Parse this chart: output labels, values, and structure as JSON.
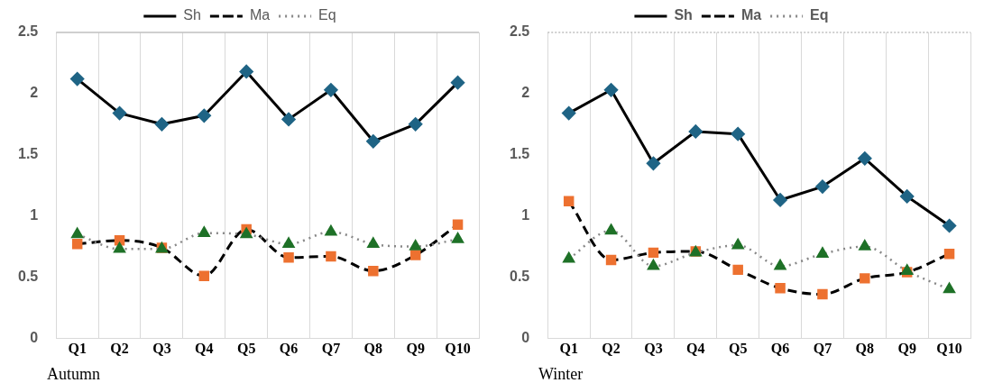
{
  "chart_data": [
    {
      "type": "line",
      "categories": [
        "Q1",
        "Q2",
        "Q3",
        "Q4",
        "Q5",
        "Q6",
        "Q7",
        "Q8",
        "Q9",
        "Q10"
      ],
      "series": [
        {
          "name": "Sh",
          "color": "#1f6485",
          "marker": "diamond",
          "line_style": "solid",
          "values": [
            2.12,
            1.84,
            1.75,
            1.82,
            2.18,
            1.79,
            2.03,
            1.61,
            1.75,
            2.09
          ]
        },
        {
          "name": "Ma",
          "color": "#ed7130",
          "marker": "square",
          "line_style": "dashed",
          "values": [
            0.77,
            0.8,
            0.74,
            0.51,
            0.89,
            0.66,
            0.67,
            0.55,
            0.68,
            0.93
          ]
        },
        {
          "name": "Eq",
          "color": "#1e7127",
          "marker": "triangle",
          "line_style": "dotted",
          "values": [
            0.85,
            0.73,
            0.73,
            0.86,
            0.85,
            0.77,
            0.87,
            0.77,
            0.75,
            0.81
          ]
        }
      ],
      "ylim": [
        0,
        2.5
      ],
      "yticks": [
        0,
        0.5,
        1,
        1.5,
        2,
        2.5
      ],
      "grid": "x",
      "legend": "top",
      "annotations": [
        "Autumn"
      ]
    },
    {
      "type": "line",
      "categories": [
        "Q1",
        "Q2",
        "Q3",
        "Q4",
        "Q5",
        "Q6",
        "Q7",
        "Q8",
        "Q9",
        "Q10"
      ],
      "series": [
        {
          "name": "Sh",
          "color": "#1f6485",
          "marker": "diamond",
          "line_style": "solid",
          "values": [
            1.84,
            2.03,
            1.43,
            1.69,
            1.67,
            1.13,
            1.24,
            1.47,
            1.16,
            0.92
          ]
        },
        {
          "name": "Ma",
          "color": "#ed7130",
          "marker": "square",
          "line_style": "dashed",
          "values": [
            1.12,
            0.64,
            0.7,
            0.71,
            0.56,
            0.41,
            0.36,
            0.49,
            0.54,
            0.69
          ]
        },
        {
          "name": "Eq",
          "color": "#1e7127",
          "marker": "triangle",
          "line_style": "dotted",
          "values": [
            0.65,
            0.88,
            0.59,
            0.7,
            0.76,
            0.59,
            0.69,
            0.75,
            0.55,
            0.4
          ]
        }
      ],
      "ylim": [
        0,
        2.5
      ],
      "yticks": [
        0,
        0.5,
        1,
        1.5,
        2,
        2.5
      ],
      "grid": "x",
      "legend": "top",
      "annotations": [
        "Winter"
      ]
    }
  ]
}
